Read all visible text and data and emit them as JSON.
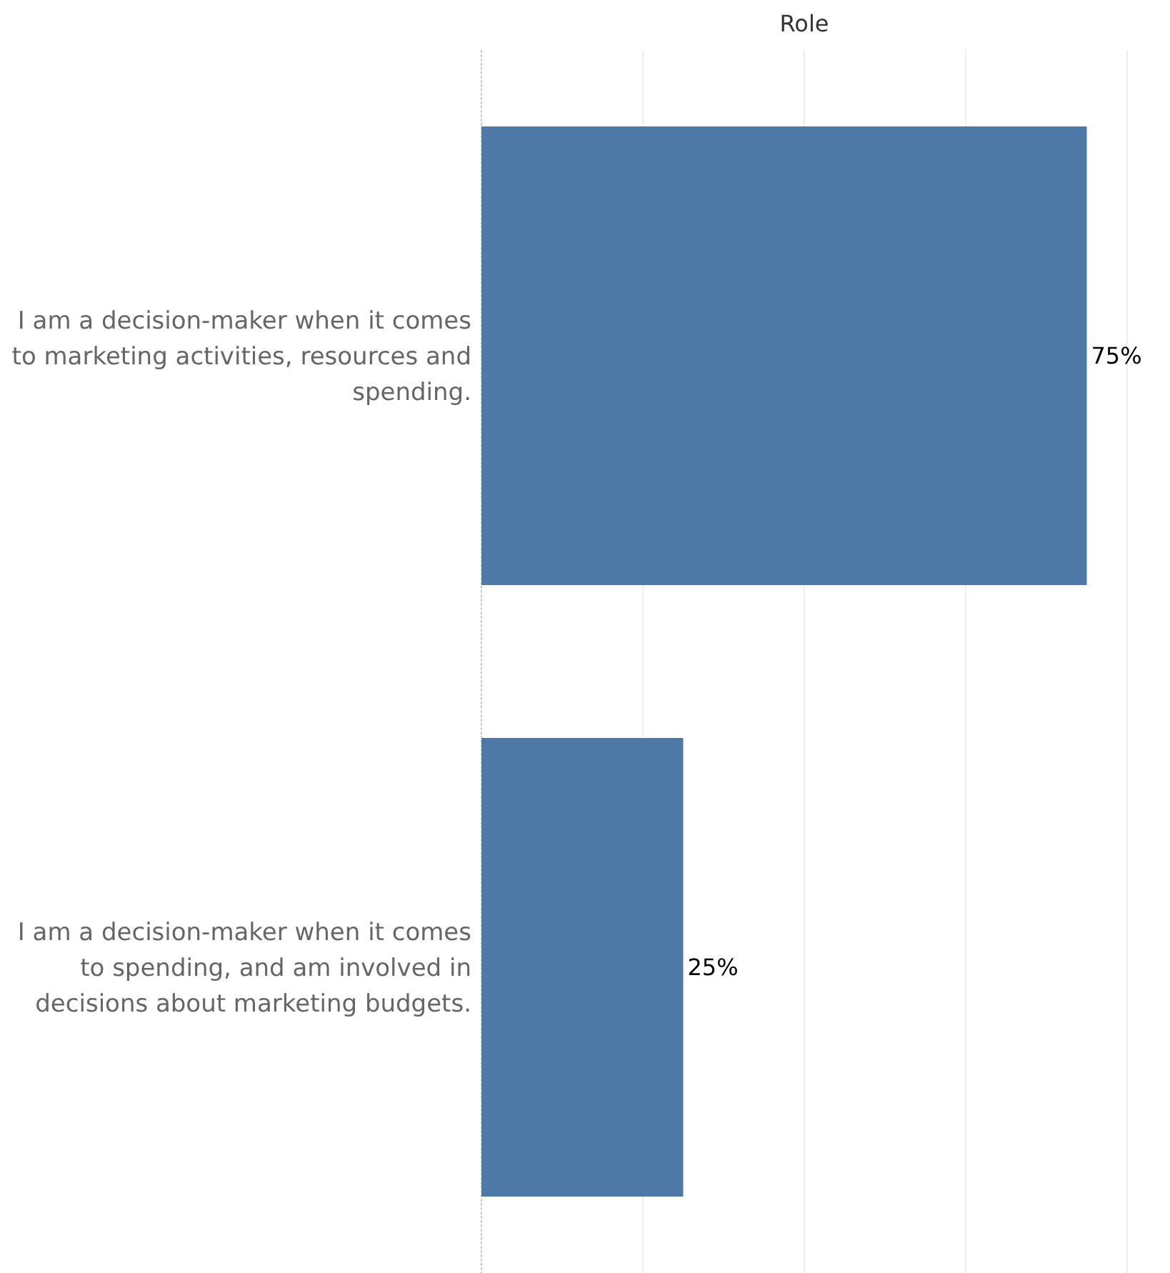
{
  "chart_data": {
    "type": "bar",
    "title": "Role",
    "orientation": "horizontal",
    "categories": [
      "I am a decision-maker when it comes to marketing activities, resources and spending.",
      "I am a decision-maker when it comes to spending, and am involved in decisions about marketing budgets."
    ],
    "values": [
      75,
      25
    ],
    "color": "#4e79a7",
    "value_labels": [
      "75%",
      "25%"
    ],
    "xlim": [
      0,
      80
    ],
    "xticks": [
      {
        "value": 0,
        "label": null
      },
      {
        "value": 20,
        "label": null
      },
      {
        "value": 40,
        "label": null
      },
      {
        "value": 60,
        "label": null
      },
      {
        "value": 80,
        "label": null
      }
    ],
    "grid": "x",
    "tick_labels": "y"
  }
}
